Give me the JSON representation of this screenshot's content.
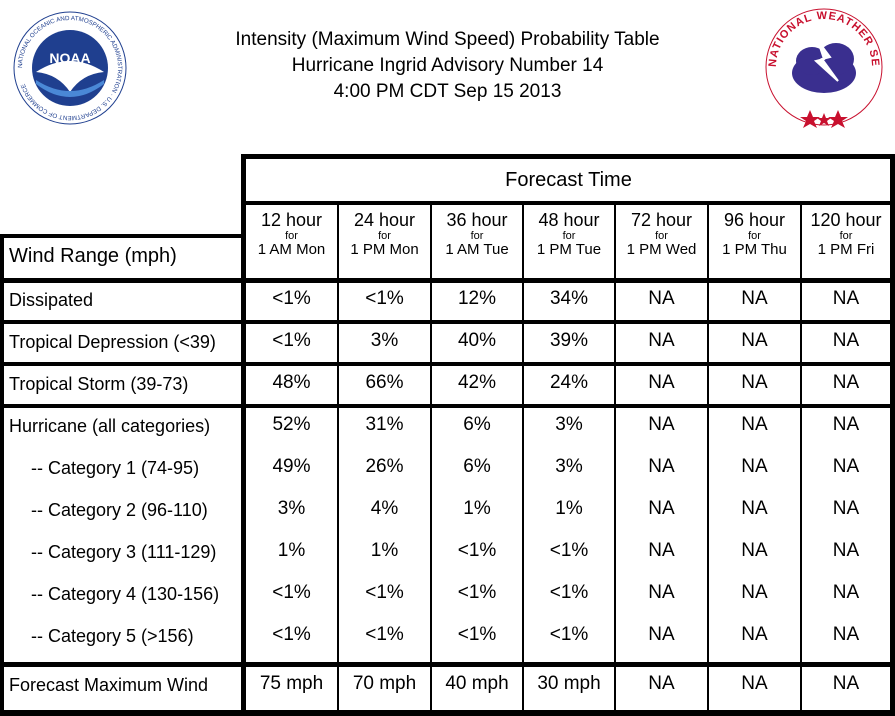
{
  "header": {
    "title_line1": "Intensity (Maximum Wind Speed) Probability Table",
    "title_line2": "Hurricane Ingrid Advisory Number 14",
    "title_line3": "4:00 PM CDT Sep 15 2013",
    "noaa_logo_text": "NOAA",
    "noaa_ring_text": "NATIONAL OCEANIC AND ATMOSPHERIC ADMINISTRATION · U.S. DEPARTMENT OF COMMERCE",
    "nws_ring_text": "NATIONAL WEATHER SERVICE"
  },
  "table": {
    "forecast_time_label": "Forecast Time",
    "wind_range_label": "Wind Range (mph)",
    "columns": [
      {
        "hours": "12 hour",
        "for": "for",
        "when": "1 AM Mon"
      },
      {
        "hours": "24 hour",
        "for": "for",
        "when": "1 PM Mon"
      },
      {
        "hours": "36 hour",
        "for": "for",
        "when": "1 AM Tue"
      },
      {
        "hours": "48 hour",
        "for": "for",
        "when": "1 PM Tue"
      },
      {
        "hours": "72 hour",
        "for": "for",
        "when": "1 PM Wed"
      },
      {
        "hours": "96 hour",
        "for": "for",
        "when": "1 PM Thu"
      },
      {
        "hours": "120 hour",
        "for": "for",
        "when": "1 PM Fri"
      }
    ],
    "rows": [
      {
        "label": "Dissipated",
        "values": [
          "<1%",
          "<1%",
          "12%",
          "34%",
          "NA",
          "NA",
          "NA"
        ]
      },
      {
        "label": "Tropical Depression (<39)",
        "values": [
          "<1%",
          "3%",
          "40%",
          "39%",
          "NA",
          "NA",
          "NA"
        ]
      },
      {
        "label": "Tropical Storm (39-73)",
        "values": [
          "48%",
          "66%",
          "42%",
          "24%",
          "NA",
          "NA",
          "NA"
        ]
      },
      {
        "label": "Hurricane (all categories)",
        "values": [
          "52%",
          "31%",
          "6%",
          "3%",
          "NA",
          "NA",
          "NA"
        ]
      },
      {
        "label": "-- Category 1 (74-95)",
        "values": [
          "49%",
          "26%",
          "6%",
          "3%",
          "NA",
          "NA",
          "NA"
        ]
      },
      {
        "label": "-- Category 2 (96-110)",
        "values": [
          "3%",
          "4%",
          "1%",
          "1%",
          "NA",
          "NA",
          "NA"
        ]
      },
      {
        "label": "-- Category 3 (111-129)",
        "values": [
          "1%",
          "1%",
          "<1%",
          "<1%",
          "NA",
          "NA",
          "NA"
        ]
      },
      {
        "label": "-- Category 4 (130-156)",
        "values": [
          "<1%",
          "<1%",
          "<1%",
          "<1%",
          "NA",
          "NA",
          "NA"
        ]
      },
      {
        "label": "-- Category 5 (>156)",
        "values": [
          "<1%",
          "<1%",
          "<1%",
          "<1%",
          "NA",
          "NA",
          "NA"
        ]
      }
    ],
    "max_wind_row": {
      "label": "Forecast Maximum Wind",
      "values": [
        "75 mph",
        "70 mph",
        "40 mph",
        "30 mph",
        "NA",
        "NA",
        "NA"
      ]
    }
  },
  "colors": {
    "border": "#000000",
    "noaa_blue": "#1f3f8f",
    "nws_red": "#c8102e"
  }
}
